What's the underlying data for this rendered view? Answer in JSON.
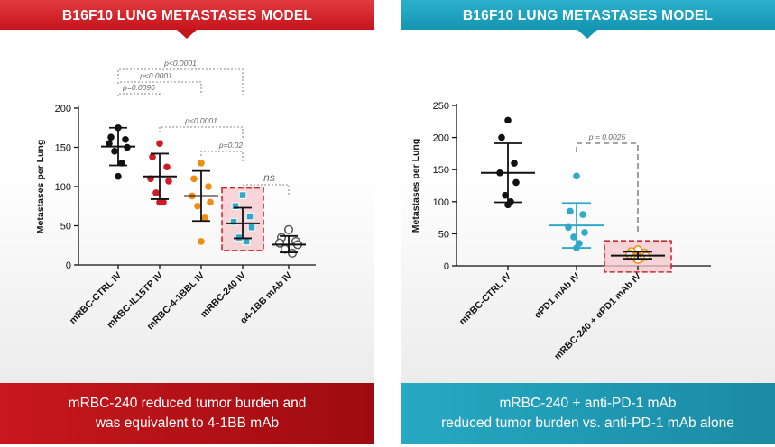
{
  "left": {
    "title": "B16F10 LUNG METASTASES MODEL",
    "footer_line1": "mRBC-240 reduced tumor burden and",
    "footer_line2": "was equivalent to 4-1BB mAb",
    "colors": {
      "header": "#c6141b",
      "footer": "#b01015"
    }
  },
  "right": {
    "title": "B16F10 LUNG METASTASES MODEL",
    "footer_line1": "mRBC-240 + anti-PD-1 mAb",
    "footer_line2": "reduced tumor burden vs. anti-PD-1 mAb alone",
    "colors": {
      "header": "#1495b1",
      "footer": "#2199b5"
    }
  },
  "chart_data": [
    {
      "type": "scatter",
      "title": "B16F10 LUNG METASTASES MODEL",
      "ylabel": "Metastases per Lung",
      "ylim": [
        0,
        200
      ],
      "yticks": [
        0,
        50,
        100,
        150,
        200
      ],
      "groups": [
        {
          "label": "mRBC-CTRL IV",
          "color": "#111111",
          "marker": "filled-circle",
          "values": [
            175,
            163,
            160,
            155,
            150,
            145,
            130,
            113
          ],
          "mean": 151,
          "sd_low": 127,
          "sd_high": 175
        },
        {
          "label": "mRBC-IL15TP IV",
          "color": "#d11a26",
          "marker": "filled-circle",
          "values": [
            155,
            138,
            125,
            110,
            107,
            92,
            80,
            80
          ],
          "mean": 113,
          "sd_low": 84,
          "sd_high": 142
        },
        {
          "label": "mRBC-4-1BBL IV",
          "color": "#f08c12",
          "marker": "filled-circle",
          "values": [
            130,
            110,
            100,
            88,
            80,
            75,
            60,
            30
          ],
          "mean": 88,
          "sd_low": 56,
          "sd_high": 120
        },
        {
          "label": "mRBC-240 IV",
          "color": "#2fa8c9",
          "marker": "filled-square",
          "values": [
            89,
            75,
            62,
            55,
            48,
            35,
            30
          ],
          "mean": 53,
          "sd_low": 34,
          "sd_high": 73
        },
        {
          "label": "α4-1BB mAb IV",
          "color": "#555555",
          "marker": "open-circle",
          "values": [
            45,
            35,
            30,
            28,
            26,
            20,
            15
          ],
          "mean": 26,
          "sd_low": 16,
          "sd_high": 37
        }
      ],
      "highlight_group": "mRBC-240 IV",
      "comparisons": [
        {
          "from": "mRBC-CTRL IV",
          "to": "mRBC-240 IV",
          "label": "p<0.0001"
        },
        {
          "from": "mRBC-CTRL IV",
          "to": "mRBC-4-1BBL IV",
          "label": "p<0.0001"
        },
        {
          "from": "mRBC-CTRL IV",
          "to": "mRBC-IL15TP IV",
          "label": "p=0.0096"
        },
        {
          "from": "mRBC-IL15TP IV",
          "to": "mRBC-240 IV",
          "label": "p<0.0001"
        },
        {
          "from": "mRBC-4-1BBL IV",
          "to": "mRBC-240 IV",
          "label": "p=0.02"
        },
        {
          "from": "mRBC-240 IV",
          "to": "α4-1BB mAb IV",
          "label": "ns"
        }
      ]
    },
    {
      "type": "scatter",
      "title": "B16F10 LUNG METASTASES MODEL",
      "ylabel": "Metastases per Lung",
      "ylim": [
        0,
        250
      ],
      "yticks": [
        0,
        50,
        100,
        150,
        200,
        250
      ],
      "groups": [
        {
          "label": "mRBC-CTRL IV",
          "color": "#111111",
          "marker": "filled-circle",
          "values": [
            227,
            200,
            160,
            145,
            130,
            110,
            100,
            95
          ],
          "mean": 145,
          "sd_low": 99,
          "sd_high": 191
        },
        {
          "label": "αPD1 mAb IV",
          "color": "#2fa8c9",
          "marker": "filled-circle",
          "values": [
            140,
            85,
            80,
            60,
            52,
            45,
            35,
            28
          ],
          "mean": 63,
          "sd_low": 28,
          "sd_high": 98
        },
        {
          "label": "mRBC-240 + αPD1 mAb IV",
          "color": "#f08c12",
          "marker": "open-circle",
          "values": [
            25,
            22,
            20,
            18,
            15,
            13,
            12,
            10
          ],
          "mean": 16,
          "sd_low": 11,
          "sd_high": 22
        }
      ],
      "highlight_group": "mRBC-240 + αPD1 mAb IV",
      "comparisons": [
        {
          "from": "αPD1 mAb IV",
          "to": "mRBC-240 + αPD1 mAb IV",
          "label": "p = 0.0025"
        }
      ]
    }
  ]
}
